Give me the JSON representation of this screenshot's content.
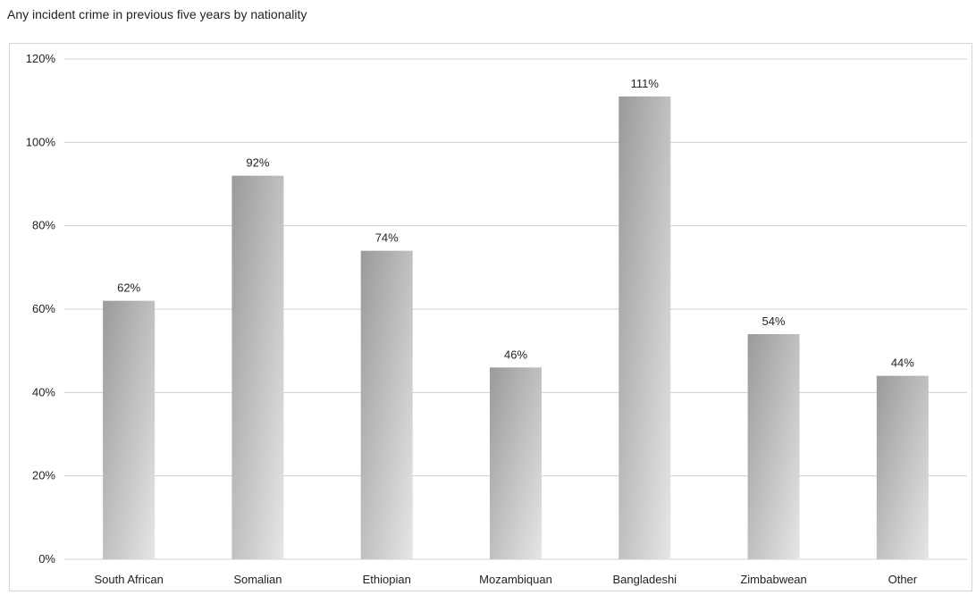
{
  "chart_data": {
    "type": "bar",
    "title": "Any incident crime in previous five years by nationality",
    "xlabel": "",
    "ylabel": "",
    "ylim": [
      0,
      1.2
    ],
    "yticks": [
      "0%",
      "20%",
      "40%",
      "60%",
      "80%",
      "100%",
      "120%"
    ],
    "grid": true,
    "legend": "none",
    "categories": [
      "South African",
      "Somalian",
      "Ethiopian",
      "Mozambiquan",
      "Bangladeshi",
      "Zimbabwean",
      "Other"
    ],
    "values": [
      0.62,
      0.92,
      0.74,
      0.46,
      1.11,
      0.54,
      0.44
    ],
    "data_labels": [
      "62%",
      "92%",
      "74%",
      "46%",
      "111%",
      "54%",
      "44%"
    ],
    "colors": {
      "bar_dark": "#9a9a9a",
      "bar_light": "#e6e6e6",
      "grid": "#d0d0d0"
    }
  }
}
